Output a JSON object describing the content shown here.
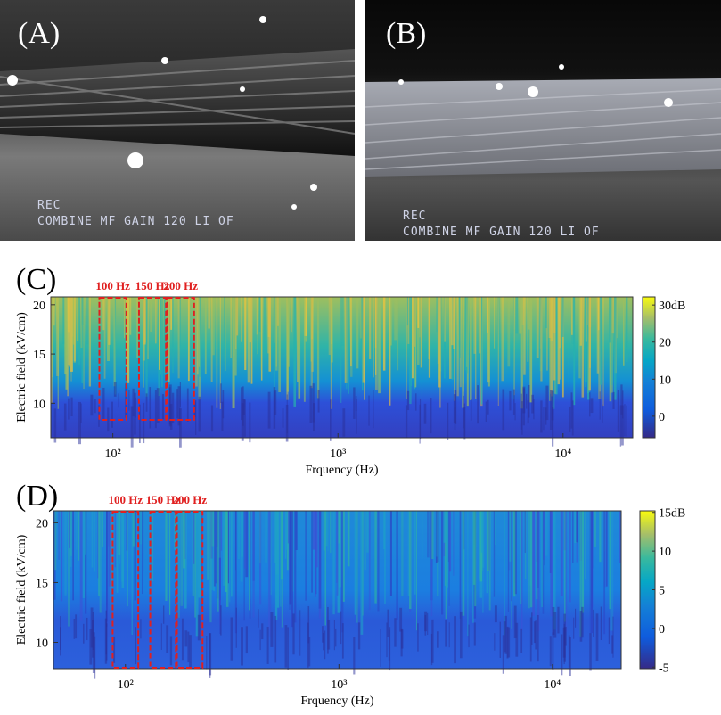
{
  "panels": [
    {
      "label": "(A)",
      "osd": [
        "REC",
        "COMBINE MF GAIN 120 LI OF"
      ]
    },
    {
      "label": "(B)",
      "osd": [
        "REC",
        "COMBINE MF GAIN 120 LI OF"
      ]
    }
  ],
  "charts": [
    {
      "type": "heatmap",
      "label": "(C)",
      "xlabel": "Frquency (Hz)",
      "ylabel": "Electric field (kV/cm)",
      "xscale": "log",
      "xlim": [
        53,
        20400
      ],
      "xticks": [
        {
          "value": 100,
          "label": "10²"
        },
        {
          "value": 1000,
          "label": "10³"
        },
        {
          "value": 10000,
          "label": "10⁴"
        }
      ],
      "ylim": [
        6.5,
        20.8
      ],
      "yticks": [
        10,
        15,
        20
      ],
      "colorbar": {
        "lim": [
          -5.8,
          32.2
        ],
        "ticks": [
          0,
          10,
          20,
          {
            "value": 30,
            "label": "30dB"
          }
        ]
      },
      "highlights": [
        {
          "value": 100,
          "label": "100 Hz"
        },
        {
          "value": 150,
          "label": "150 Hz"
        },
        {
          "value": 200,
          "label": "200 Hz"
        }
      ],
      "highlight_color": "#e02020"
    },
    {
      "type": "heatmap",
      "label": "(D)",
      "xlabel": "Frquency (Hz)",
      "ylabel": "Electric field (kV/cm)",
      "xscale": "log",
      "xlim": [
        46,
        21000
      ],
      "xticks": [
        {
          "value": 100,
          "label": "10²"
        },
        {
          "value": 1000,
          "label": "10³"
        },
        {
          "value": 10000,
          "label": "10⁴"
        }
      ],
      "ylim": [
        7.8,
        21
      ],
      "yticks": [
        10,
        15,
        20
      ],
      "colorbar": {
        "lim": [
          -5.2,
          15.2
        ],
        "ticks": [
          -5,
          0,
          5,
          10,
          {
            "value": 15,
            "label": "15dB"
          }
        ]
      },
      "highlights": [
        {
          "value": 100,
          "label": "100 Hz"
        },
        {
          "value": 150,
          "label": "150 Hz"
        },
        {
          "value": 200,
          "label": "200 Hz"
        }
      ],
      "highlight_color": "#e02020"
    }
  ]
}
